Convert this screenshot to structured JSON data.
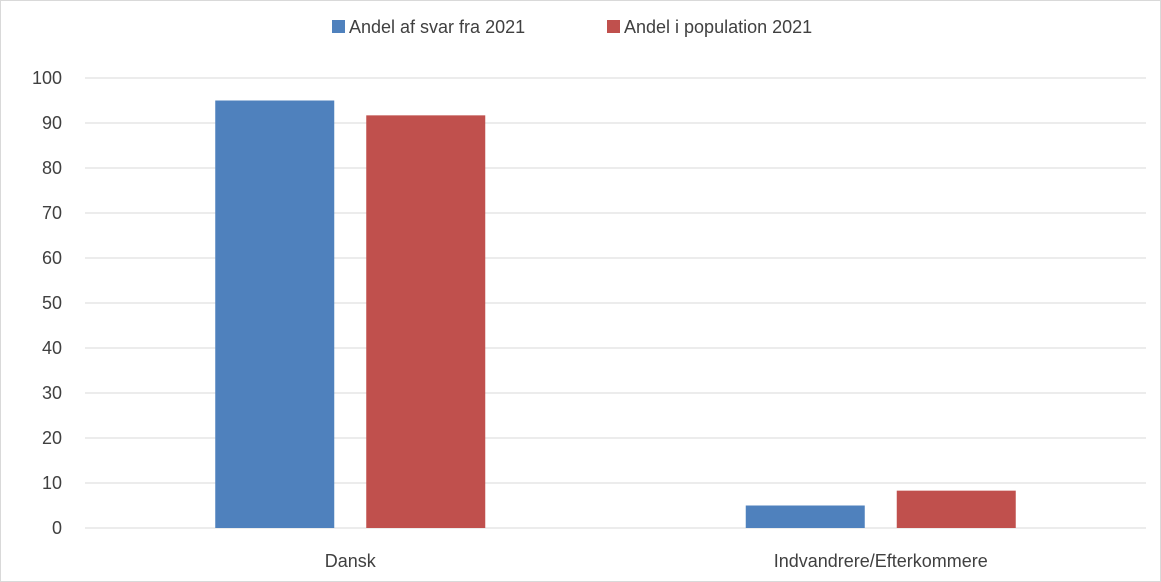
{
  "chart_data": {
    "type": "bar",
    "categories": [
      "Dansk",
      "Indvandrere/Efterkommere"
    ],
    "series": [
      {
        "name": "Andel af svar fra 2021",
        "color": "#4F81BD",
        "values": [
          95,
          5
        ]
      },
      {
        "name": "Andel i population 2021",
        "color": "#C0504D",
        "values": [
          91.7,
          8.3
        ]
      }
    ],
    "ylim": [
      0,
      100
    ],
    "yticks": [
      0,
      10,
      20,
      30,
      40,
      50,
      60,
      70,
      80,
      90,
      100
    ],
    "grid": true,
    "legend_position": "top",
    "title": "",
    "xlabel": "",
    "ylabel": ""
  }
}
